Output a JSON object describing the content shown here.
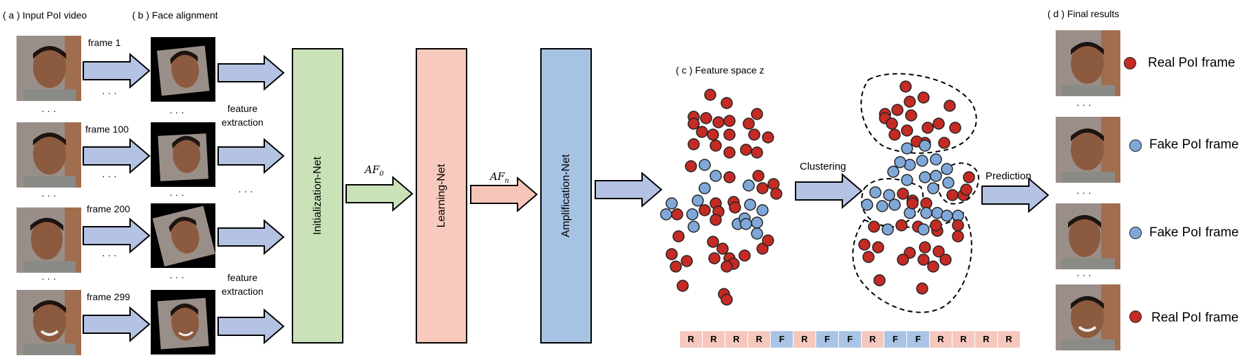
{
  "colors": {
    "arrow_fill": "#b4c3e3",
    "arrow_green": "#c9e2b8",
    "arrow_pink": "#f5c6b8",
    "net_green": "#c9e2b8",
    "net_pink": "#f8c9bd",
    "net_blue": "#a7c3e4",
    "real_dot": "#c42b25",
    "fake_dot": "#7fa8d8",
    "seq_real": "#f6c8bd",
    "seq_fake": "#a9c4e5"
  },
  "section_labels": {
    "a": "( a ) Input  PoI video",
    "b": "( b ) Face alignment",
    "c": "( c )  Feature space z",
    "d": "( d ) Final results"
  },
  "frames": [
    {
      "label": "frame  1"
    },
    {
      "label": "frame  100"
    },
    {
      "label": "frame  200"
    },
    {
      "label": "frame  299"
    }
  ],
  "ellipsis": "· · ·",
  "feature_extraction": "feature\nextraction",
  "nets": {
    "init": "Initialization-Net",
    "learning": "Learning-Net",
    "amplification": "Amplification-Net"
  },
  "math_labels": {
    "af0": "AF",
    "af0_sub": "0",
    "afn": "AF",
    "afn_sub": "n"
  },
  "clustering": "Clustering",
  "prediction": "Prediction",
  "sequence": [
    "R",
    "R",
    "R",
    "R",
    "F",
    "R",
    "F",
    "F",
    "R",
    "F",
    "F",
    "R",
    "R",
    "R",
    "R"
  ],
  "results": [
    {
      "label": "Real PoI frame",
      "kind": "real"
    },
    {
      "label": "Fake PoI frame",
      "kind": "fake"
    },
    {
      "label": "Fake PoI frame",
      "kind": "fake"
    },
    {
      "label": "Real PoI frame",
      "kind": "real"
    }
  ]
}
